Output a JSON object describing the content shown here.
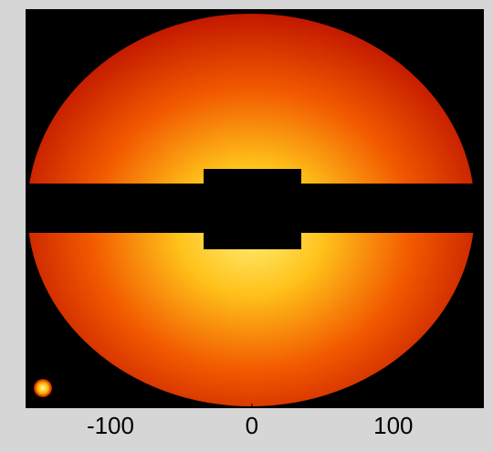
{
  "chart_data": {
    "type": "heatmap",
    "xlim": [
      -160,
      164
    ],
    "xticks": [
      -100,
      0,
      100
    ]
  }
}
